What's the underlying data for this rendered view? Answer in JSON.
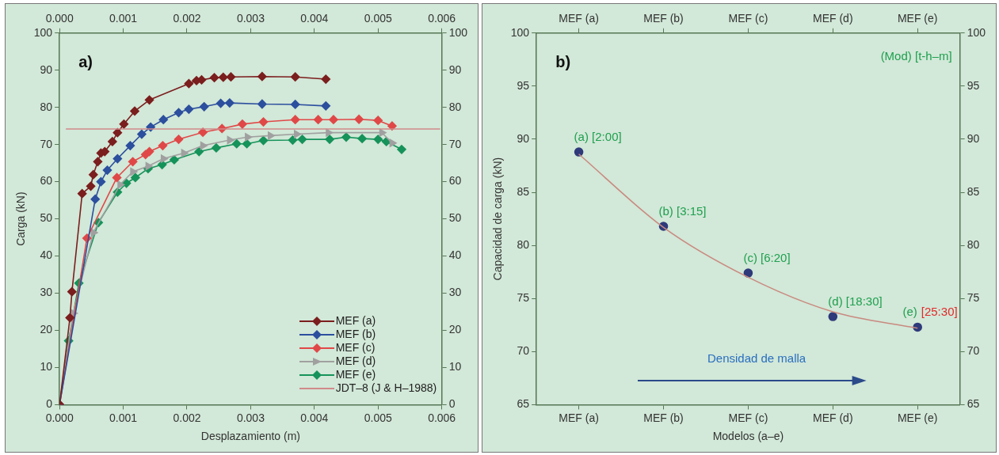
{
  "chart_data": [
    {
      "type": "line",
      "title": "a)",
      "xlabel": "Desplazamiento (m)",
      "ylabel": "Carga (kN)",
      "xlim": [
        0,
        0.006
      ],
      "xticks": [
        {
          "value": 0,
          "label": "0.000"
        },
        {
          "value": 0.001,
          "label": "0.001"
        },
        {
          "value": 0.002,
          "label": "0.002"
        },
        {
          "value": 0.003,
          "label": "0.003"
        },
        {
          "value": 0.004,
          "label": "0.004"
        },
        {
          "value": 0.005,
          "label": "0.005"
        },
        {
          "value": 0.006,
          "label": "0.006"
        }
      ],
      "x2lim": [
        0,
        0.006
      ],
      "x2ticks": [
        {
          "value": 0,
          "label": "0.000"
        },
        {
          "value": 0.001,
          "label": "0.001"
        },
        {
          "value": 0.002,
          "label": "0.002"
        },
        {
          "value": 0.003,
          "label": "0.003"
        },
        {
          "value": 0.004,
          "label": "0.004"
        },
        {
          "value": 0.005,
          "label": "0.005"
        },
        {
          "value": 0.006,
          "label": "0.006"
        }
      ],
      "ylim": [
        0,
        100
      ],
      "yticks": [
        0,
        10,
        20,
        30,
        40,
        50,
        60,
        70,
        80,
        90,
        100
      ],
      "y2lim": [
        0,
        100
      ],
      "y2ticks": [
        0,
        10,
        20,
        30,
        40,
        50,
        60,
        70,
        80,
        90,
        100
      ],
      "marker": "diamond",
      "legend": "bottom right",
      "series": [
        {
          "name": "MEF (a)",
          "color": "#7b1e1e",
          "x": [
            0,
            0.000163,
            0.000195,
            0.000355,
            0.00049,
            0.00053,
            0.0006,
            0.00065,
            0.00071,
            0.00083,
            0.00091,
            0.00101,
            0.00118,
            0.00141,
            0.00203,
            0.00215,
            0.00223,
            0.00243,
            0.00257,
            0.00269,
            0.00318,
            0.0037,
            0.00418
          ],
          "values": [
            0,
            23.4,
            30.4,
            56.8,
            58.8,
            61.9,
            65.4,
            67.7,
            68.1,
            70.8,
            73.2,
            75.5,
            79,
            82,
            86.4,
            87.2,
            87.4,
            88,
            88.1,
            88.2,
            88.3,
            88.2,
            87.6
          ]
        },
        {
          "name": "MEF (b)",
          "color": "#2c4f9e",
          "x": [
            0,
            0.000195,
            0.00056,
            0.00065,
            0.00075,
            0.00091,
            0.00111,
            0.00129,
            0.00143,
            0.00163,
            0.00187,
            0.00203,
            0.00227,
            0.00253,
            0.00267,
            0.00318,
            0.0037,
            0.00418
          ],
          "values": [
            0,
            null,
            55.3,
            60,
            63.1,
            66.2,
            69.7,
            72.8,
            74.7,
            76.7,
            78.6,
            79.5,
            80.2,
            81.1,
            81.2,
            80.9,
            80.8,
            80.4
          ]
        },
        {
          "name": "MEF (c)",
          "color": "#e04848",
          "x": [
            0,
            0.000163,
            0.00043,
            0.0009,
            0.00115,
            0.00135,
            0.00141,
            0.00162,
            0.00187,
            0.00225,
            0.00255,
            0.00287,
            0.0032,
            0.0037,
            0.00406,
            0.0043,
            0.0047,
            0.005,
            0.00522
          ],
          "values": [
            0,
            null,
            44.8,
            61.1,
            65.4,
            67.3,
            68.1,
            69.7,
            71.4,
            73.3,
            74.3,
            75.5,
            76.1,
            76.7,
            76.7,
            76.7,
            76.8,
            76.5,
            75
          ]
        },
        {
          "name": "MEF (d)",
          "color": "#a0a0a0",
          "marker": "triangle",
          "x": [
            0,
            0.000215,
            0.00053,
            0.00095,
            0.00115,
            0.00139,
            0.00163,
            0.00195,
            0.00225,
            0.00267,
            0.00295,
            0.00331,
            0.00372,
            0.00422,
            0.00506,
            0.00522
          ],
          "values": [
            0,
            24.6,
            46.3,
            59.2,
            62.7,
            64.2,
            66.2,
            67.7,
            69.7,
            71.2,
            72,
            72.4,
            72.8,
            73.2,
            73.2,
            70.4
          ]
        },
        {
          "name": "MEF (e)",
          "color": "#16935a",
          "x": [
            0,
            0.000143,
            0.000303,
            0.00061,
            0.00091,
            0.00105,
            0.00119,
            0.00139,
            0.00161,
            0.0018,
            0.00219,
            0.00246,
            0.00278,
            0.00294,
            0.0032,
            0.00366,
            0.00381,
            0.00424,
            0.0045,
            0.00475,
            0.005,
            0.00513,
            0.00537
          ],
          "values": [
            0,
            17.2,
            32.7,
            49,
            57.2,
            59.6,
            61.1,
            63.5,
            64.6,
            65.9,
            68.1,
            69.1,
            70.2,
            70.2,
            71.1,
            71.2,
            71.4,
            71.4,
            72,
            71.6,
            71.4,
            70.8,
            68.7
          ]
        }
      ],
      "ref_lines": [
        {
          "axis": "y",
          "value": 74.2,
          "label": "JDT–8 (J & H–1988)",
          "color": "#d08a8a"
        }
      ]
    },
    {
      "type": "scatter",
      "title": "b)",
      "xlabel": "Modelos (a–e)",
      "ylabel": "Capacidad de carga (kN)",
      "categories": [
        "MEF (a)",
        "MEF (b)",
        "MEF (c)",
        "MEF (d)",
        "MEF (e)"
      ],
      "ylim": [
        65,
        100
      ],
      "yticks": [
        65,
        70,
        75,
        80,
        85,
        90,
        95,
        100
      ],
      "y2lim": [
        65,
        100
      ],
      "y2ticks": [
        65,
        70,
        75,
        80,
        85,
        90,
        95,
        100
      ],
      "marker": "circle",
      "series": [
        {
          "type": "line",
          "color": "#c98a80",
          "marker": "none",
          "values": [
            88.6,
            81.7,
            77.0,
            73.75,
            72.2
          ]
        },
        {
          "type": "scatter",
          "color": "#2e3a7a",
          "values": [
            88.8,
            81.8,
            77.4,
            73.3,
            72.3
          ]
        }
      ],
      "annotations": [
        "(Mod) [t-h–m]",
        "Densidad de malla",
        {
          "text": "(a) [2:00]",
          "x": "MEF (a)",
          "y": 88.8
        },
        {
          "text": "(b) [3:15]",
          "x": "MEF (b)",
          "y": 81.8
        },
        {
          "text": "(c) [6:20]",
          "x": "MEF (c)",
          "y": 77.4
        },
        {
          "text": "(d) [18:30]",
          "x": "MEF (d)",
          "y": 73.3
        },
        {
          "text": "(e)",
          "x": "MEF (e)",
          "y": 72.3
        },
        {
          "text": "[25:30]",
          "x": "MEF (e)",
          "y": 72.3
        }
      ]
    }
  ]
}
